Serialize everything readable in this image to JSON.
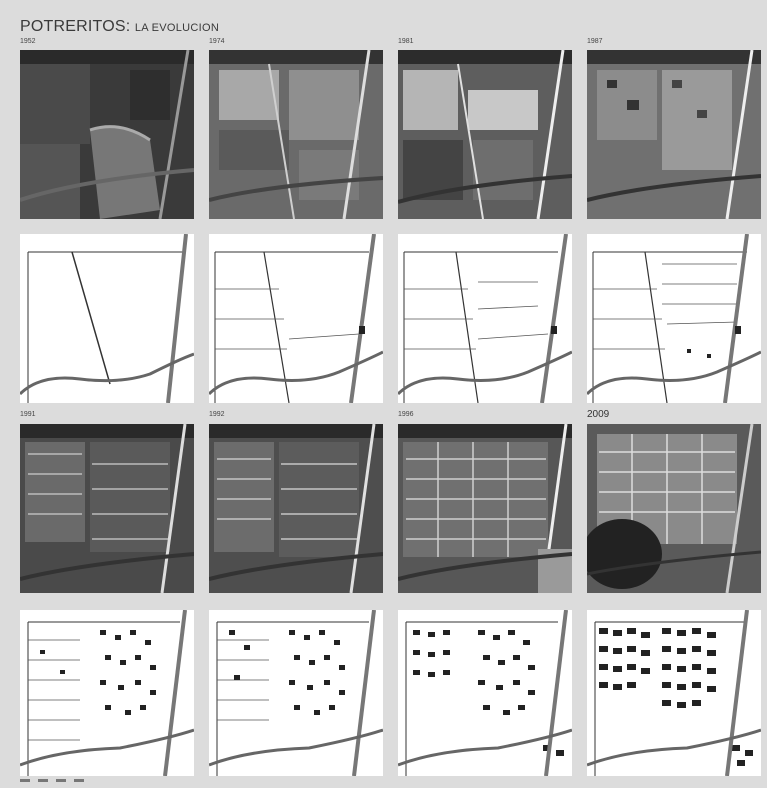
{
  "title": {
    "main": "POTRERITOS:",
    "sub": "LA EVOLUCION"
  },
  "years": [
    "1952",
    "1974",
    "1981",
    "1987",
    "1991",
    "1992",
    "1996",
    "2009"
  ],
  "sections": {
    "row1": "aerial-photographs-early",
    "row2": "line-maps-early",
    "row3": "aerial-photographs-late",
    "row4": "line-maps-late"
  }
}
